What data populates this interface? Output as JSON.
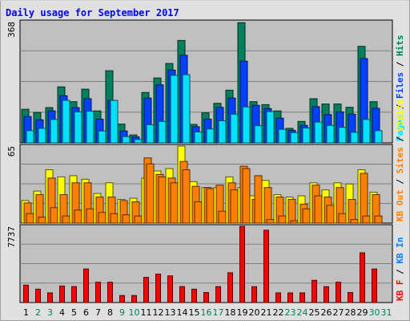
{
  "chart_data": {
    "type": "bar",
    "title": "Daily usage for September 2017",
    "categories": [
      "1",
      "2",
      "3",
      "4",
      "5",
      "6",
      "7",
      "8",
      "9",
      "10",
      "11",
      "12",
      "13",
      "14",
      "15",
      "16",
      "17",
      "18",
      "19",
      "20",
      "21",
      "22",
      "23",
      "24",
      "25",
      "26",
      "27",
      "28",
      "29",
      "30",
      "31"
    ],
    "weekend_days": [
      2,
      3,
      9,
      10,
      16,
      17,
      23,
      24,
      30,
      31
    ],
    "panels": [
      {
        "id": "hits-files-pages",
        "ymax_label": "368",
        "ymax": 368,
        "legend": [
          "Pages",
          "Files",
          "Hits"
        ],
        "series": [
          {
            "name": "Hits",
            "color": "#00805c",
            "values": [
              102,
              92,
              107,
              170,
              125,
              163,
              97,
              219,
              57,
              24,
              153,
              197,
              241,
              311,
              56,
              91,
              120,
              160,
              365,
              125,
              116,
              97,
              44,
              65,
              134,
              118,
              118,
              108,
              293,
              125,
              0
            ]
          },
          {
            "name": "Files",
            "color": "#0040ff",
            "values": [
              80,
              70,
              97,
              143,
              107,
              134,
              72,
              129,
              36,
              18,
              136,
              176,
              221,
              266,
              49,
              72,
              108,
              136,
              248,
              114,
              104,
              75,
              38,
              53,
              110,
              86,
              94,
              87,
              256,
              105,
              0
            ]
          },
          {
            "name": "Pages",
            "color": "#00e0ff",
            "values": [
              37,
              44,
              71,
              129,
              94,
              96,
              36,
              129,
              19,
              10,
              55,
              65,
              205,
              207,
              33,
              42,
              67,
              87,
              109,
              52,
              95,
              41,
              31,
              45,
              63,
              53,
              47,
              32,
              71,
              37,
              0
            ]
          }
        ]
      },
      {
        "id": "visits-sites-kbout",
        "ymax_label": "65",
        "ymax": 65,
        "legend": [
          "KB Out",
          "Sites",
          "Visits"
        ],
        "series": [
          {
            "name": "Visits",
            "color": "#ffff00",
            "values": [
              19,
              27,
              45,
              39,
              40,
              37,
              25,
              34,
              20,
              21,
              38,
              44,
              46,
              65,
              35,
              30,
              30,
              39,
              30,
              23,
              36,
              24,
              22,
              23,
              34,
              28,
              34,
              33,
              45,
              26,
              0
            ]
          },
          {
            "name": "Sites",
            "color": "#ff8000",
            "values": [
              17,
              24,
              38,
              24,
              34,
              34,
              22,
              22,
              19,
              18,
              55,
              41,
              38,
              52,
              31,
              30,
              32,
              34,
              48,
              20,
              30,
              22,
              20,
              16,
              32,
              22,
              30,
              20,
              42,
              24,
              0
            ]
          },
          {
            "name": "KB Out",
            "color": "#ff8000",
            "values": [
              8,
              5,
              13,
              6,
              11,
              12,
              9,
              8,
              7,
              6,
              50,
              39,
              34,
              45,
              18,
              29,
              10,
              28,
              46,
              40,
              3,
              6,
              2,
              12,
              23,
              15,
              8,
              3,
              6,
              6,
              0
            ]
          }
        ]
      },
      {
        "id": "kbf-kbin",
        "ymax_label": "7737",
        "ymax": 7737,
        "legend": [
          "KB F",
          "KB In"
        ],
        "series": [
          {
            "name": "KB F",
            "color": "#ff0000",
            "values": [
              1766,
              1357,
              982,
              1680,
              1620,
              3405,
              2064,
              2064,
              715,
              715,
              2556,
              2892,
              2706,
              1620,
              1357,
              1014,
              1620,
              3024,
              7737,
              1614,
              7339,
              982,
              982,
              982,
              2260,
              1614,
              2064,
              1014,
              5047,
              3405,
              0
            ]
          },
          {
            "name": "KB In",
            "color": "#0080ff",
            "values": [
              0,
              0,
              0,
              0,
              0,
              0,
              0,
              0,
              0,
              0,
              0,
              0,
              0,
              0,
              0,
              0,
              0,
              0,
              0,
              0,
              0,
              0,
              0,
              0,
              0,
              0,
              0,
              0,
              0,
              0,
              0
            ]
          }
        ]
      }
    ],
    "colors": {
      "hits": "#00805c",
      "files": "#0040ff",
      "pages": "#00e0ff",
      "visits": "#ffff00",
      "sites": "#ff8000",
      "kbout": "#ff8000",
      "kbf": "#ff0000",
      "kbin": "#0080ff",
      "title": "#0000ff",
      "weekday_label": "#000000",
      "weekend_label": "#00805c",
      "panel_bg": "#c0c0c0",
      "outer_bg": "#e0e0e0"
    },
    "grid": true
  }
}
